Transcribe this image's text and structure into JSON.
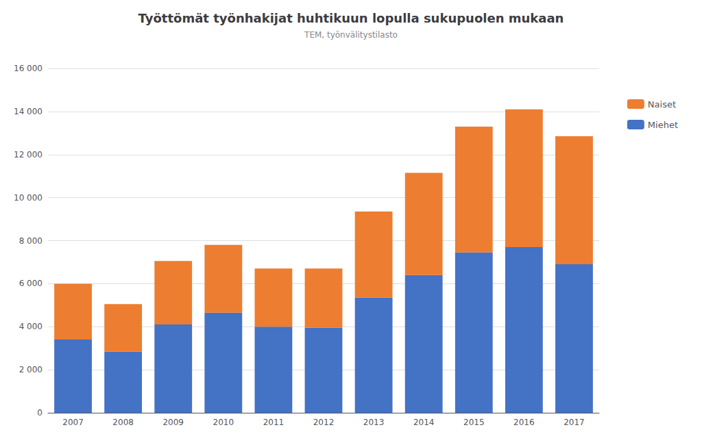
{
  "chart_data": {
    "type": "bar",
    "title": "Työttömät työnhakijat huhtikuun lopulla sukupuolen mukaan",
    "subtitle": "TEM, työnvälitystilasto",
    "categories": [
      "2007",
      "2008",
      "2009",
      "2010",
      "2011",
      "2012",
      "2013",
      "2014",
      "2015",
      "2016",
      "2017"
    ],
    "series": [
      {
        "name": "Miehet",
        "color": "#4472C4",
        "values": [
          3400,
          2850,
          4100,
          4650,
          4000,
          3950,
          5350,
          6400,
          7450,
          7700,
          6900
        ]
      },
      {
        "name": "Naiset",
        "color": "#ED7D31",
        "values": [
          2600,
          2200,
          2950,
          3150,
          2700,
          2750,
          4000,
          4750,
          5850,
          6400,
          5950
        ]
      }
    ],
    "stacked": true,
    "ylim": [
      0,
      16000
    ],
    "yticks": [
      0,
      {
        "value": 2000,
        "label": "2 000"
      },
      {
        "value": 4000,
        "label": "4 000"
      },
      {
        "value": 6000,
        "label": "6 000"
      },
      {
        "value": 8000,
        "label": "8 000"
      },
      {
        "value": 10000,
        "label": "10 000"
      },
      {
        "value": 12000,
        "label": "12 000"
      },
      {
        "value": 14000,
        "label": "14 000"
      },
      {
        "value": 16000,
        "label": "16 000"
      }
    ],
    "grid": true,
    "legend": "right"
  }
}
